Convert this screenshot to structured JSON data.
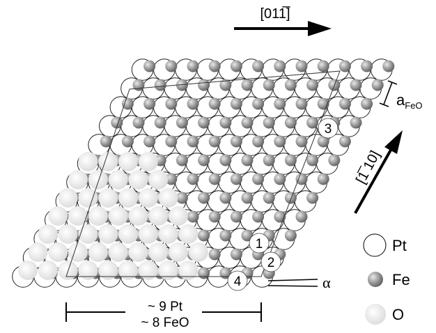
{
  "directions": {
    "horizontal": "[011̅]",
    "inclined": "[1̅ 10]"
  },
  "lattice_label": {
    "main": "a",
    "subscript": "FeO"
  },
  "site_labels": [
    "1",
    "2",
    "3",
    "4"
  ],
  "angle_label": "α",
  "scale_bar": {
    "line1": "~ 9 Pt",
    "line2": "~ 8 FeO"
  },
  "legend": [
    {
      "name": "Pt",
      "color": "#ffffff"
    },
    {
      "name": "Fe",
      "color": "#8c8c8c"
    },
    {
      "name": "O",
      "color": "#e6e6e6"
    }
  ]
}
